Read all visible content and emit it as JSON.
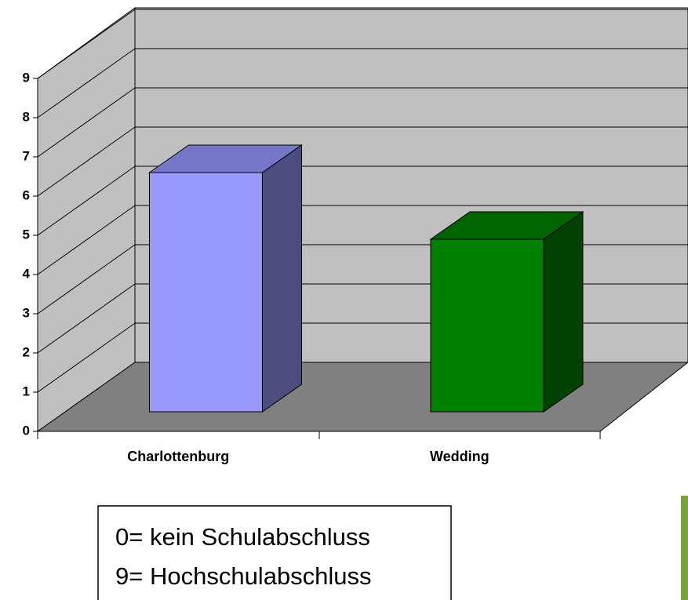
{
  "chart_data": {
    "type": "bar3d",
    "categories": [
      "Charlottenburg",
      "Wedding"
    ],
    "values": [
      6.1,
      4.4
    ],
    "colors": [
      "#9999ff",
      "#008000"
    ],
    "ylim": [
      0,
      9
    ],
    "yticks": [
      0,
      1,
      2,
      3,
      4,
      5,
      6,
      7,
      8,
      9
    ],
    "grid": true,
    "annotations": [
      "0= kein Schulabschluss",
      "9= Hochschulabschluss"
    ]
  }
}
